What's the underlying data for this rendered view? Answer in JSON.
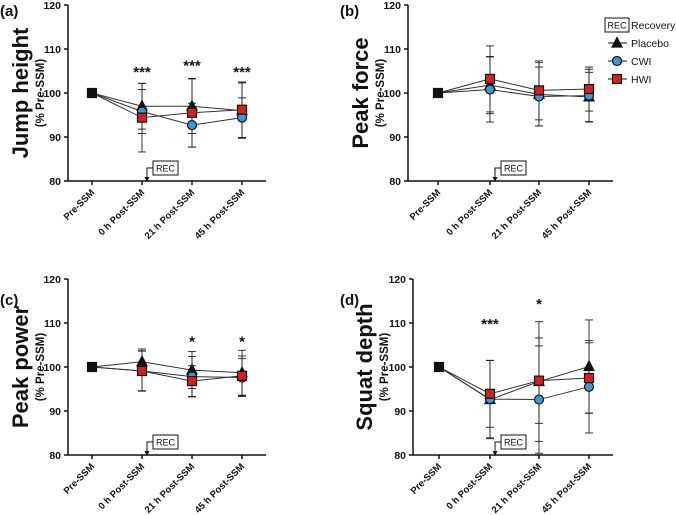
{
  "chart_data": [
    {
      "type": "line",
      "panel_label": "(a)",
      "ylabel": "Jump height",
      "ylabel_sub": "(% Pre-SSM)",
      "categories": [
        "Pre-SSM",
        "0 h Post-SSM",
        "21 h Post-SSM",
        "45 h Post-SSM"
      ],
      "ylim": [
        80,
        120
      ],
      "yticks": [
        80,
        90,
        100,
        110,
        120
      ],
      "series": [
        {
          "name": "Placebo",
          "values": [
            100,
            97.0,
            97.0,
            96.0
          ],
          "sd": [
            0,
            5.2,
            6.2,
            6.3
          ]
        },
        {
          "name": "CWI",
          "values": [
            100,
            95.8,
            92.7,
            94.4
          ],
          "sd": [
            0,
            5.0,
            5.0,
            4.5
          ]
        },
        {
          "name": "HWI",
          "values": [
            100,
            94.4,
            95.5,
            96.2
          ],
          "sd": [
            0,
            7.8,
            7.8,
            6.3
          ]
        }
      ],
      "significance": [
        {
          "category": "0 h Post-SSM",
          "label": "***",
          "y": 105
        },
        {
          "category": "21 h Post-SSM",
          "label": "***",
          "y": 106.5
        },
        {
          "category": "45 h Post-SSM",
          "label": "***",
          "y": 105
        }
      ],
      "rec_marker": {
        "category": "0 h Post-SSM",
        "label": "REC"
      }
    },
    {
      "type": "line",
      "panel_label": "(b)",
      "ylabel": "Peak force",
      "ylabel_sub": "(% Pre-SSM)",
      "categories": [
        "Pre-SSM",
        "0 h Post-SSM",
        "21 h Post-SSM",
        "45 h Post-SSM"
      ],
      "ylim": [
        80,
        120
      ],
      "yticks": [
        80,
        90,
        100,
        110,
        120
      ],
      "series": [
        {
          "name": "Placebo",
          "values": [
            100,
            101.8,
            99.7,
            99.1
          ],
          "sd": [
            0,
            6.5,
            7.2,
            5.6
          ]
        },
        {
          "name": "CWI",
          "values": [
            100,
            100.8,
            99.2,
            99.4
          ],
          "sd": [
            0,
            7.4,
            6.7,
            6.0
          ]
        },
        {
          "name": "HWI",
          "values": [
            100,
            103.2,
            100.6,
            100.9
          ],
          "sd": [
            0,
            7.5,
            6.7,
            5.0
          ]
        }
      ],
      "significance": [],
      "rec_marker": {
        "category": "0 h Post-SSM",
        "label": "REC"
      }
    },
    {
      "type": "line",
      "panel_label": "(c)",
      "ylabel": "Peak power",
      "ylabel_sub": "(% Pre-SSM)",
      "categories": [
        "Pre-SSM",
        "0 h Post-SSM",
        "21 h Post-SSM",
        "45 h Post-SSM"
      ],
      "ylim": [
        80,
        120
      ],
      "yticks": [
        80,
        90,
        100,
        110,
        120
      ],
      "series": [
        {
          "name": "Placebo",
          "values": [
            100,
            101.2,
            99.3,
            98.7
          ],
          "sd": [
            0,
            2.9,
            4.2,
            5.1
          ]
        },
        {
          "name": "CWI",
          "values": [
            100,
            99.1,
            97.8,
            97.6
          ],
          "sd": [
            0,
            4.5,
            4.6,
            4.3
          ]
        },
        {
          "name": "HWI",
          "values": [
            100,
            99.1,
            96.8,
            98.0
          ],
          "sd": [
            0,
            4.6,
            3.5,
            4.5
          ]
        }
      ],
      "significance": [
        {
          "category": "21 h Post-SSM",
          "label": "*",
          "y": 106
        },
        {
          "category": "45 h Post-SSM",
          "label": "*",
          "y": 106
        }
      ],
      "rec_marker": {
        "category": "0 h Post-SSM",
        "label": "REC"
      }
    },
    {
      "type": "line",
      "panel_label": "(d)",
      "ylabel": "Squat depth",
      "ylabel_sub": "(% Pre-SSM)",
      "categories": [
        "Pre-SSM",
        "0 h Post-SSM",
        "21 h Post-SSM",
        "45 h Post-SSM"
      ],
      "ylim": [
        80,
        120
      ],
      "yticks": [
        80,
        90,
        100,
        110,
        120
      ],
      "series": [
        {
          "name": "Placebo",
          "values": [
            100,
            92.6,
            96.7,
            100.1
          ],
          "sd": [
            0,
            8.9,
            13.6,
            10.6
          ]
        },
        {
          "name": "CWI",
          "values": [
            100,
            92.7,
            92.6,
            95.5
          ],
          "sd": [
            0,
            8.8,
            12.2,
            10.5
          ]
        },
        {
          "name": "HWI",
          "values": [
            100,
            93.9,
            96.9,
            97.5
          ],
          "sd": [
            0,
            7.6,
            9.7,
            8.0
          ]
        }
      ],
      "significance": [
        {
          "category": "0 h Post-SSM",
          "label": "***",
          "y": 110
        },
        {
          "category": "21 h Post-SSM",
          "label": "*",
          "y": 114.5
        }
      ],
      "rec_marker": {
        "category": "0 h Post-SSM",
        "label": "REC"
      }
    }
  ],
  "legend": {
    "rec_box": "REC",
    "rec_label": "Recovery",
    "entries": [
      {
        "name": "Placebo",
        "marker": "triangle",
        "color": "#111111"
      },
      {
        "name": "CWI",
        "marker": "circle",
        "color": "#3a9ad9"
      },
      {
        "name": "HWI",
        "marker": "square",
        "color": "#d42020"
      }
    ]
  },
  "colors": {
    "Placebo": "#111111",
    "CWI": "#3a9ad9",
    "HWI": "#d42020",
    "Pre": "#111111"
  }
}
